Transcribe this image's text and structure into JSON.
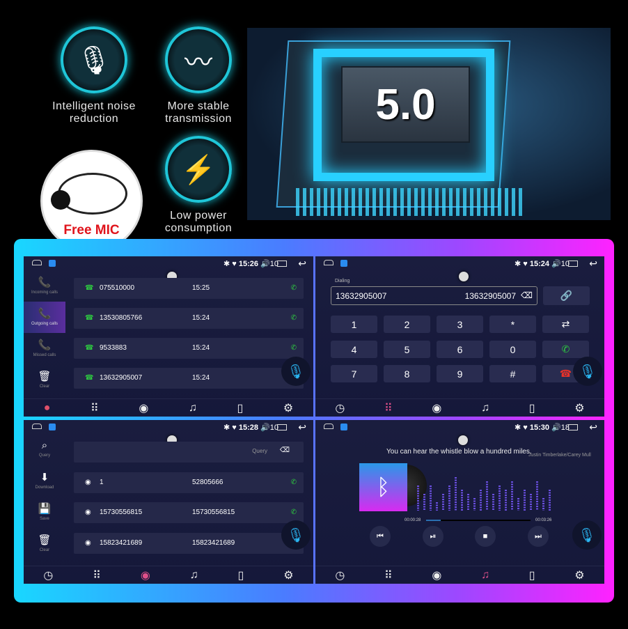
{
  "features": [
    {
      "icon": "microphone-icon",
      "label": "Intelligent noise reduction"
    },
    {
      "icon": "waveform-icon",
      "label": "More stable transmission"
    },
    {
      "icon": "lightning-icon",
      "label": "Low power consumption"
    }
  ],
  "chip": {
    "version": "5.0"
  },
  "promo": {
    "label": "Free MIC"
  },
  "screens": {
    "calls": {
      "status": {
        "time": "15:26",
        "volume": "10"
      },
      "sidebar": [
        {
          "icon": "incoming-call-icon",
          "label": "Incoming calls"
        },
        {
          "icon": "outgoing-call-icon",
          "label": "Outgoing calls",
          "active": true
        },
        {
          "icon": "missed-call-icon",
          "label": "Missed calls"
        },
        {
          "icon": "trash-icon",
          "label": "Clear"
        }
      ],
      "rows": [
        {
          "number": "075510000",
          "time": "15:25"
        },
        {
          "number": "13530805766",
          "time": "15:24"
        },
        {
          "number": "9533883",
          "time": "15:24"
        },
        {
          "number": "13632905007",
          "time": "15:24"
        }
      ]
    },
    "dialer": {
      "status": {
        "time": "15:24",
        "volume": "10"
      },
      "label": "Dialing",
      "input_value": "13632905007",
      "input_display": "13632905007",
      "keys": [
        [
          "1",
          "2",
          "3",
          "*"
        ],
        [
          "4",
          "5",
          "6",
          "0"
        ],
        [
          "7",
          "8",
          "9",
          "#"
        ]
      ]
    },
    "contacts": {
      "status": {
        "time": "15:28",
        "volume": "10"
      },
      "sidebar": [
        {
          "icon": "search-icon",
          "label": "Query"
        },
        {
          "icon": "download-icon",
          "label": "Download"
        },
        {
          "icon": "save-icon",
          "label": "Save"
        },
        {
          "icon": "trash-icon",
          "label": "Clear"
        }
      ],
      "search_placeholder": "Query",
      "rows": [
        {
          "name": "1",
          "number": "52805666"
        },
        {
          "name": "15730556815",
          "number": "15730556815"
        },
        {
          "name": "15823421689",
          "number": "15823421689"
        }
      ]
    },
    "music": {
      "status": {
        "time": "15:30",
        "volume": "18"
      },
      "title": "You can hear the whistle blow a hundred miles.",
      "artist": "Justin Timberlake/Carey Mull",
      "elapsed": "00:00:28",
      "duration": "00:03:26",
      "progress": 0.14
    }
  },
  "colors": {
    "accent_cyan": "#19d7ff",
    "accent_magenta": "#ff22ff",
    "call_green": "#2ecc40",
    "hangup_red": "#e8322a"
  }
}
